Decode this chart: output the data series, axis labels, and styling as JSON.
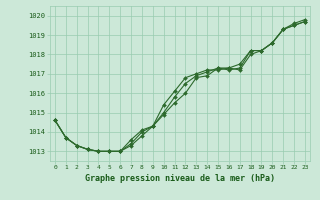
{
  "xlabel": "Graphe pression niveau de la mer (hPa)",
  "hours": [
    0,
    1,
    2,
    3,
    4,
    5,
    6,
    7,
    8,
    9,
    10,
    11,
    12,
    13,
    14,
    15,
    16,
    17,
    18,
    19,
    20,
    21,
    22,
    23
  ],
  "line1": [
    1014.6,
    1013.7,
    1013.3,
    1013.1,
    1013.0,
    1013.0,
    1013.0,
    1013.3,
    1013.8,
    1014.3,
    1014.9,
    1015.5,
    1016.0,
    1016.8,
    1016.9,
    1017.3,
    1017.2,
    1017.3,
    1018.2,
    1018.2,
    1018.6,
    1019.3,
    1019.6,
    1019.8
  ],
  "line2": [
    1014.6,
    1013.7,
    1013.3,
    1013.1,
    1013.0,
    1013.0,
    1013.0,
    1013.4,
    1014.0,
    1014.3,
    1015.0,
    1015.8,
    1016.5,
    1016.9,
    1017.1,
    1017.3,
    1017.3,
    1017.5,
    1018.2,
    1018.2,
    1018.6,
    1019.3,
    1019.5,
    1019.7
  ],
  "line3": [
    1014.6,
    1013.7,
    1013.3,
    1013.1,
    1013.0,
    1013.0,
    1013.0,
    1013.6,
    1014.1,
    1014.3,
    1015.4,
    1016.1,
    1016.8,
    1017.0,
    1017.2,
    1017.2,
    1017.3,
    1017.2,
    1018.0,
    1018.2,
    1018.6,
    1019.3,
    1019.5,
    1019.7
  ],
  "line_color": "#2d6a2d",
  "bg_color": "#cce8d8",
  "grid_color": "#99ccb0",
  "text_color": "#1a5c1a",
  "ylim_min": 1012.5,
  "ylim_max": 1020.5,
  "yticks": [
    1013,
    1014,
    1015,
    1016,
    1017,
    1018,
    1019,
    1020
  ],
  "marker": "D",
  "marker_size": 2.0,
  "linewidth": 0.8
}
